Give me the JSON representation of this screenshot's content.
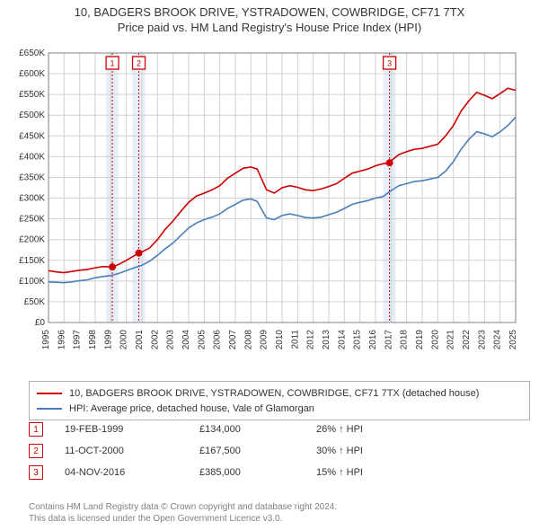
{
  "title": {
    "line1": "10, BADGERS BROOK DRIVE, YSTRADOWEN, COWBRIDGE, CF71 7TX",
    "line2": "Price paid vs. HM Land Registry's House Price Index (HPI)"
  },
  "chart": {
    "type": "line",
    "background_color": "#ffffff",
    "grid_color": "#d0d0d0",
    "axis_color": "#808080",
    "ylabel_prefix": "£",
    "ylim": [
      0,
      650000
    ],
    "ytick_step": 50000,
    "yticks": [
      "£0",
      "£50K",
      "£100K",
      "£150K",
      "£200K",
      "£250K",
      "£300K",
      "£350K",
      "£400K",
      "£450K",
      "£500K",
      "£550K",
      "£600K",
      "£650K"
    ],
    "xlim": [
      1995,
      2025
    ],
    "xticks": [
      1995,
      1996,
      1997,
      1998,
      1999,
      2000,
      2001,
      2002,
      2003,
      2004,
      2005,
      2006,
      2007,
      2008,
      2009,
      2010,
      2011,
      2012,
      2013,
      2014,
      2015,
      2016,
      2017,
      2018,
      2019,
      2020,
      2021,
      2022,
      2023,
      2024,
      2025
    ],
    "line_width": 1.6,
    "series": [
      {
        "name": "property",
        "color": "#cc0000",
        "label": "10, BADGERS BROOK DRIVE, YSTRADOWEN, COWBRIDGE, CF71 7TX (detached house)",
        "data": [
          [
            1995.0,
            125000
          ],
          [
            1995.5,
            122000
          ],
          [
            1996.0,
            120000
          ],
          [
            1996.5,
            123000
          ],
          [
            1997.0,
            126000
          ],
          [
            1997.5,
            128000
          ],
          [
            1998.0,
            132000
          ],
          [
            1998.5,
            135000
          ],
          [
            1999.1,
            134000
          ],
          [
            1999.5,
            140000
          ],
          [
            2000.0,
            150000
          ],
          [
            2000.8,
            167500
          ],
          [
            2001.0,
            170000
          ],
          [
            2001.5,
            180000
          ],
          [
            2002.0,
            200000
          ],
          [
            2002.5,
            225000
          ],
          [
            2003.0,
            245000
          ],
          [
            2003.5,
            268000
          ],
          [
            2004.0,
            290000
          ],
          [
            2004.5,
            305000
          ],
          [
            2005.0,
            312000
          ],
          [
            2005.5,
            320000
          ],
          [
            2006.0,
            330000
          ],
          [
            2006.5,
            348000
          ],
          [
            2007.0,
            360000
          ],
          [
            2007.5,
            372000
          ],
          [
            2008.0,
            375000
          ],
          [
            2008.4,
            370000
          ],
          [
            2008.7,
            345000
          ],
          [
            2009.0,
            320000
          ],
          [
            2009.5,
            312000
          ],
          [
            2010.0,
            325000
          ],
          [
            2010.5,
            330000
          ],
          [
            2011.0,
            326000
          ],
          [
            2011.5,
            320000
          ],
          [
            2012.0,
            318000
          ],
          [
            2012.5,
            322000
          ],
          [
            2013.0,
            328000
          ],
          [
            2013.5,
            335000
          ],
          [
            2014.0,
            348000
          ],
          [
            2014.5,
            360000
          ],
          [
            2015.0,
            365000
          ],
          [
            2015.5,
            370000
          ],
          [
            2016.0,
            378000
          ],
          [
            2016.5,
            383000
          ],
          [
            2016.9,
            385000
          ],
          [
            2017.0,
            390000
          ],
          [
            2017.5,
            405000
          ],
          [
            2018.0,
            412000
          ],
          [
            2018.5,
            418000
          ],
          [
            2019.0,
            420000
          ],
          [
            2019.5,
            425000
          ],
          [
            2020.0,
            430000
          ],
          [
            2020.5,
            450000
          ],
          [
            2021.0,
            475000
          ],
          [
            2021.5,
            510000
          ],
          [
            2022.0,
            535000
          ],
          [
            2022.5,
            555000
          ],
          [
            2023.0,
            548000
          ],
          [
            2023.5,
            540000
          ],
          [
            2024.0,
            552000
          ],
          [
            2024.5,
            565000
          ],
          [
            2025.0,
            560000
          ]
        ]
      },
      {
        "name": "hpi",
        "color": "#4a7ebb",
        "label": "HPI: Average price, detached house, Vale of Glamorgan",
        "data": [
          [
            1995.0,
            98000
          ],
          [
            1995.5,
            97000
          ],
          [
            1996.0,
            96000
          ],
          [
            1996.5,
            98000
          ],
          [
            1997.0,
            101000
          ],
          [
            1997.5,
            103000
          ],
          [
            1998.0,
            108000
          ],
          [
            1998.5,
            111000
          ],
          [
            1999.0,
            113000
          ],
          [
            1999.5,
            118000
          ],
          [
            2000.0,
            125000
          ],
          [
            2000.5,
            132000
          ],
          [
            2001.0,
            138000
          ],
          [
            2001.5,
            148000
          ],
          [
            2002.0,
            162000
          ],
          [
            2002.5,
            178000
          ],
          [
            2003.0,
            192000
          ],
          [
            2003.5,
            210000
          ],
          [
            2004.0,
            228000
          ],
          [
            2004.5,
            240000
          ],
          [
            2005.0,
            248000
          ],
          [
            2005.5,
            254000
          ],
          [
            2006.0,
            262000
          ],
          [
            2006.5,
            275000
          ],
          [
            2007.0,
            285000
          ],
          [
            2007.5,
            295000
          ],
          [
            2008.0,
            298000
          ],
          [
            2008.4,
            292000
          ],
          [
            2008.7,
            272000
          ],
          [
            2009.0,
            252000
          ],
          [
            2009.5,
            248000
          ],
          [
            2010.0,
            258000
          ],
          [
            2010.5,
            262000
          ],
          [
            2011.0,
            258000
          ],
          [
            2011.5,
            253000
          ],
          [
            2012.0,
            252000
          ],
          [
            2012.5,
            254000
          ],
          [
            2013.0,
            260000
          ],
          [
            2013.5,
            266000
          ],
          [
            2014.0,
            275000
          ],
          [
            2014.5,
            285000
          ],
          [
            2015.0,
            290000
          ],
          [
            2015.5,
            294000
          ],
          [
            2016.0,
            300000
          ],
          [
            2016.5,
            304000
          ],
          [
            2017.0,
            318000
          ],
          [
            2017.5,
            330000
          ],
          [
            2018.0,
            335000
          ],
          [
            2018.5,
            340000
          ],
          [
            2019.0,
            342000
          ],
          [
            2019.5,
            346000
          ],
          [
            2020.0,
            350000
          ],
          [
            2020.5,
            365000
          ],
          [
            2021.0,
            388000
          ],
          [
            2021.5,
            418000
          ],
          [
            2022.0,
            442000
          ],
          [
            2022.5,
            460000
          ],
          [
            2023.0,
            455000
          ],
          [
            2023.5,
            448000
          ],
          [
            2024.0,
            460000
          ],
          [
            2024.5,
            475000
          ],
          [
            2025.0,
            495000
          ]
        ]
      }
    ],
    "sale_markers": [
      {
        "id": "1",
        "x": 1999.1,
        "y": 134000,
        "band_color": "#e8effa",
        "line_color": "#cc0000"
      },
      {
        "id": "2",
        "x": 2000.8,
        "y": 167500,
        "band_color": "#e8effa",
        "line_color": "#cc0000"
      },
      {
        "id": "3",
        "x": 2016.9,
        "y": 385000,
        "band_color": "#e8effa",
        "line_color": "#cc0000"
      }
    ],
    "marker_radius": 4,
    "marker_fill": "#cc0000",
    "badge_border": "#cc0000",
    "label_fontsize": 10,
    "tick_fontsize": 10
  },
  "legend": {
    "rows": [
      {
        "color": "#cc0000",
        "text": "10, BADGERS BROOK DRIVE, YSTRADOWEN, COWBRIDGE, CF71 7TX (detached house)"
      },
      {
        "color": "#4a7ebb",
        "text": "HPI: Average price, detached house, Vale of Glamorgan"
      }
    ]
  },
  "sales_table": {
    "rows": [
      {
        "badge": "1",
        "date": "19-FEB-1999",
        "price": "£134,000",
        "pct": "26% ↑ HPI"
      },
      {
        "badge": "2",
        "date": "11-OCT-2000",
        "price": "£167,500",
        "pct": "30% ↑ HPI"
      },
      {
        "badge": "3",
        "date": "04-NOV-2016",
        "price": "£385,000",
        "pct": "15% ↑ HPI"
      }
    ],
    "badge_border": "#cc0000"
  },
  "footer": {
    "line1": "Contains HM Land Registry data © Crown copyright and database right 2024.",
    "line2": "This data is licensed under the Open Government Licence v3.0."
  }
}
